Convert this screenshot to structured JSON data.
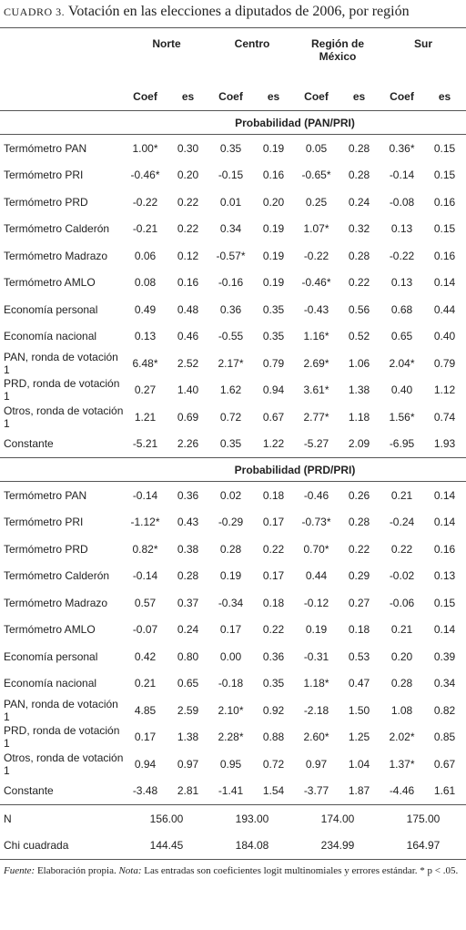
{
  "title": {
    "label": "CUADRO 3.",
    "text": "Votación en las elecciones a diputados de 2006, por región"
  },
  "table": {
    "regions": [
      "Norte",
      "Centro",
      "Región de México",
      "Sur"
    ],
    "subheaders": [
      "Coef",
      "es",
      "Coef",
      "es",
      "Coef",
      "es",
      "Coef",
      "es"
    ],
    "sections": [
      {
        "title": "Probabilidad (PAN/PRI)",
        "rows": [
          {
            "label": "Termómetro PAN",
            "cells": [
              "1.00*",
              "0.30",
              "0.35",
              "0.19",
              "0.05",
              "0.28",
              "0.36*",
              "0.15"
            ]
          },
          {
            "label": "Termómetro PRI",
            "cells": [
              "-0.46*",
              "0.20",
              "-0.15",
              "0.16",
              "-0.65*",
              "0.28",
              "-0.14",
              "0.15"
            ]
          },
          {
            "label": "Termómetro PRD",
            "cells": [
              "-0.22",
              "0.22",
              "0.01",
              "0.20",
              "0.25",
              "0.24",
              "-0.08",
              "0.16"
            ]
          },
          {
            "label": "Termómetro Calderón",
            "cells": [
              "-0.21",
              "0.22",
              "0.34",
              "0.19",
              "1.07*",
              "0.32",
              "0.13",
              "0.15"
            ]
          },
          {
            "label": "Termómetro Madrazo",
            "cells": [
              "0.06",
              "0.12",
              "-0.57*",
              "0.19",
              "-0.22",
              "0.28",
              "-0.22",
              "0.16"
            ]
          },
          {
            "label": "Termómetro AMLO",
            "cells": [
              "0.08",
              "0.16",
              "-0.16",
              "0.19",
              "-0.46*",
              "0.22",
              "0.13",
              "0.14"
            ]
          },
          {
            "label": "Economía personal",
            "cells": [
              "0.49",
              "0.48",
              "0.36",
              "0.35",
              "-0.43",
              "0.56",
              "0.68",
              "0.44"
            ]
          },
          {
            "label": "Economía nacional",
            "cells": [
              "0.13",
              "0.46",
              "-0.55",
              "0.35",
              "1.16*",
              "0.52",
              "0.65",
              "0.40"
            ]
          },
          {
            "label": "PAN, ronda de votación 1",
            "cells": [
              "6.48*",
              "2.52",
              "2.17*",
              "0.79",
              "2.69*",
              "1.06",
              "2.04*",
              "0.79"
            ]
          },
          {
            "label": "PRD, ronda de votación 1",
            "cells": [
              "0.27",
              "1.40",
              "1.62",
              "0.94",
              "3.61*",
              "1.38",
              "0.40",
              "1.12"
            ]
          },
          {
            "label": "Otros, ronda de votación 1",
            "cells": [
              "1.21",
              "0.69",
              "0.72",
              "0.67",
              "2.77*",
              "1.18",
              "1.56*",
              "0.74"
            ]
          },
          {
            "label": "Constante",
            "cells": [
              "-5.21",
              "2.26",
              "0.35",
              "1.22",
              "-5.27",
              "2.09",
              "-6.95",
              "1.93"
            ]
          }
        ]
      },
      {
        "title": "Probabilidad (PRD/PRI)",
        "rows": [
          {
            "label": "Termómetro PAN",
            "cells": [
              "-0.14",
              "0.36",
              "0.02",
              "0.18",
              "-0.46",
              "0.26",
              "0.21",
              "0.14"
            ]
          },
          {
            "label": "Termómetro PRI",
            "cells": [
              "-1.12*",
              "0.43",
              "-0.29",
              "0.17",
              "-0.73*",
              "0.28",
              "-0.24",
              "0.14"
            ]
          },
          {
            "label": "Termómetro PRD",
            "cells": [
              "0.82*",
              "0.38",
              "0.28",
              "0.22",
              "0.70*",
              "0.22",
              "0.22",
              "0.16"
            ]
          },
          {
            "label": "Termómetro Calderón",
            "cells": [
              "-0.14",
              "0.28",
              "0.19",
              "0.17",
              "0.44",
              "0.29",
              "-0.02",
              "0.13"
            ]
          },
          {
            "label": "Termómetro Madrazo",
            "cells": [
              "0.57",
              "0.37",
              "-0.34",
              "0.18",
              "-0.12",
              "0.27",
              "-0.06",
              "0.15"
            ]
          },
          {
            "label": "Termómetro AMLO",
            "cells": [
              "-0.07",
              "0.24",
              "0.17",
              "0.22",
              "0.19",
              "0.18",
              "0.21",
              "0.14"
            ]
          },
          {
            "label": "Economía personal",
            "cells": [
              "0.42",
              "0.80",
              "0.00",
              "0.36",
              "-0.31",
              "0.53",
              "0.20",
              "0.39"
            ]
          },
          {
            "label": "Economía nacional",
            "cells": [
              "0.21",
              "0.65",
              "-0.18",
              "0.35",
              "1.18*",
              "0.47",
              "0.28",
              "0.34"
            ]
          },
          {
            "label": "PAN, ronda de votación 1",
            "cells": [
              "4.85",
              "2.59",
              "2.10*",
              "0.92",
              "-2.18",
              "1.50",
              "1.08",
              "0.82"
            ]
          },
          {
            "label": "PRD, ronda de votación 1",
            "cells": [
              "0.17",
              "1.38",
              "2.28*",
              "0.88",
              "2.60*",
              "1.25",
              "2.02*",
              "0.85"
            ]
          },
          {
            "label": "Otros, ronda de votación 1",
            "cells": [
              "0.94",
              "0.97",
              "0.95",
              "0.72",
              "0.97",
              "1.04",
              "1.37*",
              "0.67"
            ]
          },
          {
            "label": "Constante",
            "cells": [
              "-3.48",
              "2.81",
              "-1.41",
              "1.54",
              "-3.77",
              "1.87",
              "-4.46",
              "1.61"
            ]
          }
        ]
      }
    ],
    "summary_rows": [
      {
        "label": "N",
        "cells": [
          "156.00",
          "193.00",
          "174.00",
          "175.00"
        ]
      },
      {
        "label": "Chi cuadrada",
        "cells": [
          "144.45",
          "184.08",
          "234.99",
          "164.97"
        ]
      }
    ]
  },
  "note": {
    "source_label": "Fuente:",
    "source": "Elaboración propia.",
    "note_label": "Nota:",
    "note": "Las entradas son coeficientes logit multinomiales y errores estándar. * p < .05."
  }
}
